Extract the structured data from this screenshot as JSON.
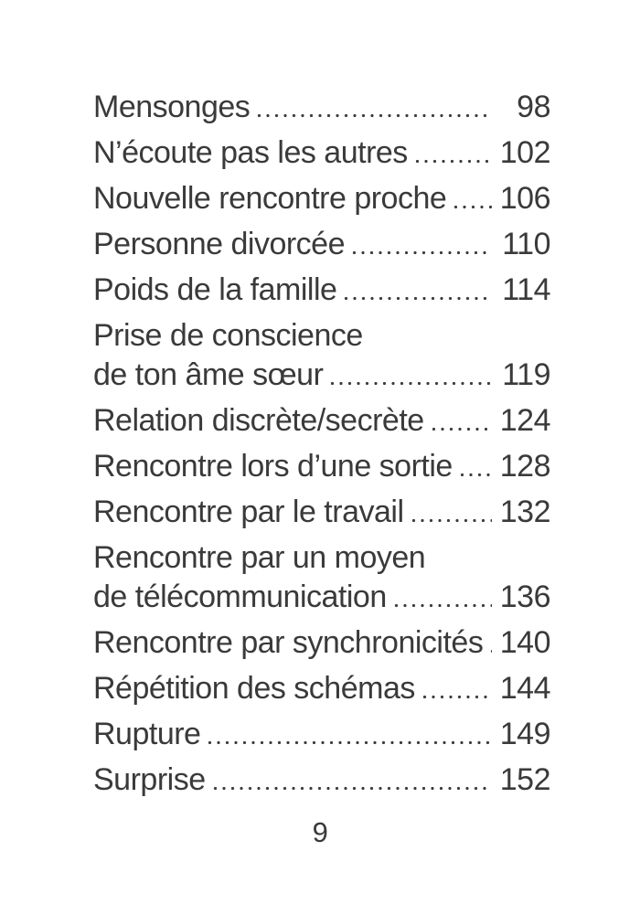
{
  "toc": {
    "entries": [
      {
        "lines": [
          "Mensonges"
        ],
        "page": "98"
      },
      {
        "lines": [
          "N’écoute pas les autres"
        ],
        "page": "102"
      },
      {
        "lines": [
          "Nouvelle rencontre proche"
        ],
        "page": "106"
      },
      {
        "lines": [
          "Personne divorcée"
        ],
        "page": "110"
      },
      {
        "lines": [
          "Poids de la famille"
        ],
        "page": "114"
      },
      {
        "lines": [
          "Prise de conscience",
          "de ton âme sœur"
        ],
        "page": "119"
      },
      {
        "lines": [
          "Relation discrète/secrète"
        ],
        "page": "124"
      },
      {
        "lines": [
          "Rencontre lors d’une sortie"
        ],
        "page": "128"
      },
      {
        "lines": [
          "Rencontre par le travail"
        ],
        "page": "132"
      },
      {
        "lines": [
          "Rencontre par un moyen",
          "de télécommunication"
        ],
        "page": "136"
      },
      {
        "lines": [
          "Rencontre par synchronicités"
        ],
        "page": "140"
      },
      {
        "lines": [
          "Répétition des schémas"
        ],
        "page": "144"
      },
      {
        "lines": [
          "Rupture"
        ],
        "page": "149"
      },
      {
        "lines": [
          "Surprise"
        ],
        "page": "152"
      }
    ]
  },
  "footer": {
    "page_number": "9"
  },
  "colors": {
    "text": "#3a3a3a",
    "background": "#ffffff",
    "dot_leader": "#3d3d3d"
  }
}
